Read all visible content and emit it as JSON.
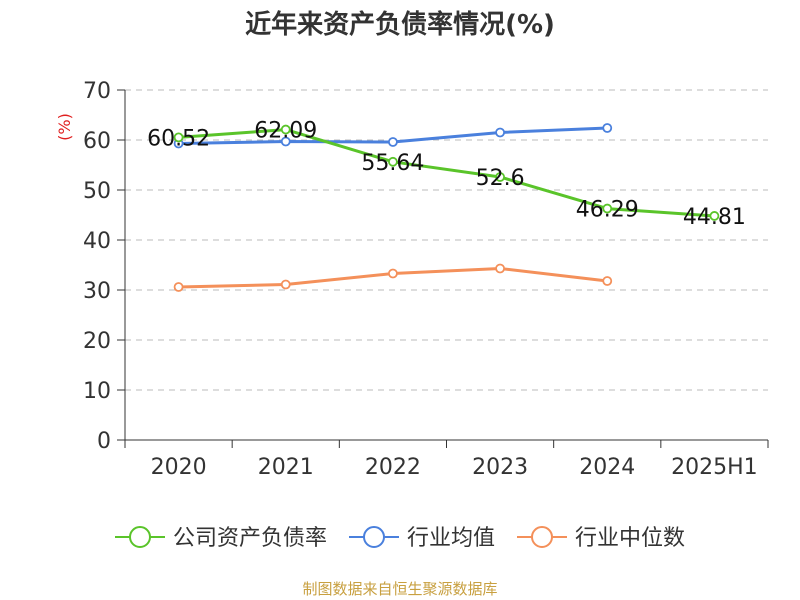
{
  "chart_data": {
    "type": "line",
    "title": "近年来资产负债率情况(%)",
    "ylabel": "(%)",
    "ylabel_color": "#e02020",
    "xlabel": "",
    "categories": [
      "2020",
      "2021",
      "2022",
      "2023",
      "2024",
      "2025H1"
    ],
    "ylim": [
      0,
      70
    ],
    "yticks": [
      0,
      10,
      20,
      30,
      40,
      50,
      60,
      70
    ],
    "grid": true,
    "legend_position": "bottom",
    "series": [
      {
        "name": "公司资产负债率",
        "color": "#5ac42a",
        "values": [
          60.52,
          62.09,
          55.64,
          52.6,
          46.29,
          44.81
        ],
        "labels": [
          "60.52",
          "62.09",
          "55.64",
          "52.6",
          "46.29",
          "44.81"
        ],
        "show_labels": true
      },
      {
        "name": "行业均值",
        "color": "#4a80dd",
        "values": [
          59.3,
          59.7,
          59.6,
          61.5,
          62.4,
          null
        ],
        "show_labels": false
      },
      {
        "name": "行业中位数",
        "color": "#f4905a",
        "values": [
          30.6,
          31.1,
          33.3,
          34.3,
          31.8,
          null
        ],
        "show_labels": false
      }
    ]
  },
  "source": {
    "text": "制图数据来自恒生聚源数据库",
    "color": "#c8a040"
  }
}
